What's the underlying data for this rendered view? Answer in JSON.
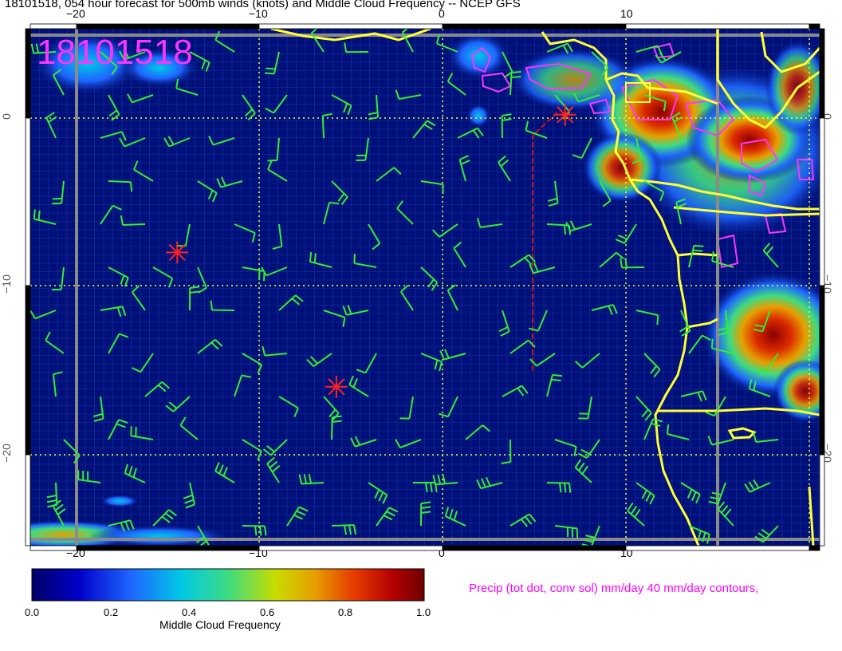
{
  "title": "18101518, 054 hour forecast for 500mb winds (knots) and Middle Cloud Frequency -- NCEP GFS",
  "map_stamp": "18101518",
  "axes": {
    "top_lon_labels": [
      "−20",
      "−10",
      "0",
      "10"
    ],
    "bottom_lon_labels": [
      "−20",
      "−10",
      "0",
      "10"
    ],
    "left_lat_labels": [
      "0",
      "−10",
      "−20"
    ],
    "right_lat_labels": [
      "0",
      "−10",
      "−20"
    ]
  },
  "colorbar": {
    "title": "Middle Cloud Frequency",
    "ticks": [
      "0.0",
      "0.2",
      "0.4",
      "0.6",
      "0.8",
      "1.0"
    ],
    "colors": [
      "#000066",
      "#0000c8",
      "#1e64ff",
      "#00c8e6",
      "#3cdc82",
      "#c8dc00",
      "#e6a000",
      "#e63c00",
      "#b40000",
      "#6e0000"
    ]
  },
  "precip_note": "Precip (tot dot, conv sol) mm/day 40 mm/day contours,",
  "colors": {
    "ocean": "#00107a",
    "grid": "#3050c0",
    "coast": "#ffff33",
    "barbs": "#33ee33",
    "stars": "#ff2020",
    "precip": "#ff33ff",
    "dotted_grid": "#ffff33"
  },
  "markers": [
    {
      "name": "storm-star-1",
      "lon": -14.5,
      "lat": -8
    },
    {
      "name": "storm-star-2",
      "lon": -5.8,
      "lat": -16
    },
    {
      "name": "storm-star-3",
      "lon": 6.7,
      "lat": 0.2
    }
  ]
}
